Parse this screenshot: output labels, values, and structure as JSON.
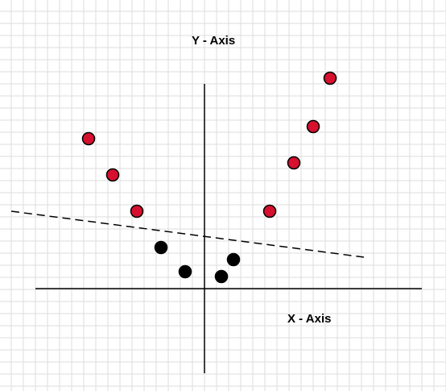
{
  "labels": {
    "y_axis": "Y - Axis",
    "x_axis": "X - Axis"
  },
  "colors": {
    "grid": "#dedede",
    "axis": "#000000",
    "red_point": "#d6102e",
    "black_point": "#000000",
    "separator": "#000000",
    "background": "#ffffff"
  },
  "chart_data": {
    "type": "scatter",
    "xlim": [
      -7,
      9
    ],
    "ylim": [
      -3.5,
      8.5
    ],
    "grid": true,
    "series": [
      {
        "points": [
          {
            "x": -4.8,
            "y": 6.2
          },
          {
            "x": -3.8,
            "y": 4.7
          },
          {
            "x": -2.8,
            "y": 3.2
          },
          {
            "x": 2.7,
            "y": 3.2
          },
          {
            "x": 3.7,
            "y": 5.2
          },
          {
            "x": 4.5,
            "y": 6.7
          },
          {
            "x": 5.2,
            "y": 8.7
          }
        ]
      },
      {
        "points": [
          {
            "x": -1.8,
            "y": 1.7
          },
          {
            "x": -0.8,
            "y": 0.7
          },
          {
            "x": 0.7,
            "y": 0.5
          },
          {
            "x": 1.2,
            "y": 1.2
          }
        ]
      }
    ],
    "separator_line": {
      "from": [
        -8,
        3.2
      ],
      "to": [
        6.6,
        1.3
      ],
      "style": "dashed"
    }
  }
}
